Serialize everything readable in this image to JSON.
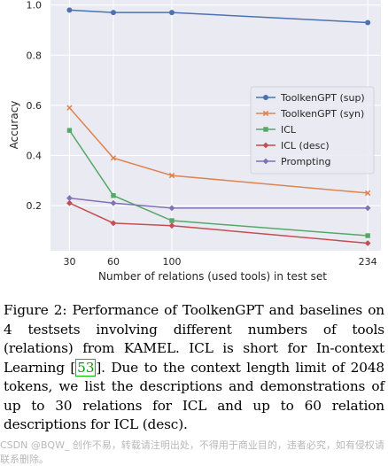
{
  "chart_data": {
    "type": "line",
    "xlabel": "Number of relations (used tools) in test set",
    "ylabel": "Accuracy",
    "x": [
      30,
      60,
      100,
      234
    ],
    "xticks": [
      30,
      60,
      100,
      234
    ],
    "xlim": [
      17,
      243
    ],
    "yticks": [
      0.2,
      0.4,
      0.6,
      0.8,
      1.0
    ],
    "ytick_labels": [
      "0.2",
      "0.4",
      "0.6",
      "0.8",
      "1.0"
    ],
    "ylim": [
      0.02,
      1.02
    ],
    "grid": true,
    "legend_position": "center-right",
    "series": [
      {
        "name": "ToolkenGPT (sup)",
        "color": "#4c72b0",
        "marker": "circle",
        "values": [
          0.98,
          0.97,
          0.97,
          0.93
        ]
      },
      {
        "name": "ToolkenGPT (syn)",
        "color": "#dd8452",
        "marker": "x",
        "values": [
          0.59,
          0.39,
          0.32,
          0.25
        ]
      },
      {
        "name": "ICL",
        "color": "#55a868",
        "marker": "square",
        "values": [
          0.5,
          0.24,
          0.14,
          0.08
        ]
      },
      {
        "name": "ICL (desc)",
        "color": "#c44e52",
        "marker": "diamond",
        "values": [
          0.21,
          0.13,
          0.12,
          0.05
        ]
      },
      {
        "name": "Prompting",
        "color": "#8172b3",
        "marker": "diamond",
        "values": [
          0.23,
          0.21,
          0.19,
          0.19
        ]
      }
    ]
  },
  "caption": {
    "before_cite": "Figure 2: Performance of ToolkenGPT and baselines on 4 testsets involving different numbers of tools (relations) from KAMEL. ICL is short for In-context Learning [",
    "cite": "53",
    "after_cite": "]. Due to the context length limit of 2048 tokens, we list the descriptions and demonstrations of up to 30 relations for ICL and up to 60 relation descriptions for ICL (desc)."
  },
  "watermark": "CSDN @BQW_ 创作不易，转载请注明出处，不得用于商业目的，违者必究，如有侵权请联系删除。"
}
